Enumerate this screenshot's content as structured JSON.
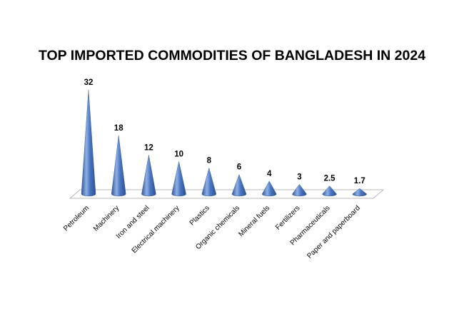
{
  "chart_data": {
    "type": "bar",
    "title": "TOP IMPORTED COMMODITIES OF BANGLADESH IN 2024",
    "categories": [
      "Petroleum",
      "Machinery",
      "Iron and steel",
      "Electrical machinery",
      "Plastics",
      "Organic chemicals",
      "Mineral fuels",
      "Fertilizers",
      "Pharmaceuticals",
      "Paper and paperboard"
    ],
    "values": [
      32,
      18,
      12,
      10,
      8,
      6,
      4,
      3,
      2.5,
      1.7
    ],
    "value_labels": [
      "32",
      "18",
      "12",
      "10",
      "8",
      "6",
      "4",
      "3",
      "2.5",
      "1.7"
    ],
    "xlabel": "",
    "ylabel": "",
    "ylim": [
      0,
      32
    ],
    "grid": false,
    "legend": "none",
    "shape": "cone",
    "colors": {
      "cone_fill": "#4a76c0",
      "cone_highlight": "#8fb0e6",
      "cone_shadow": "#2b4f91",
      "floor_stroke": "#b8b8b8"
    }
  }
}
